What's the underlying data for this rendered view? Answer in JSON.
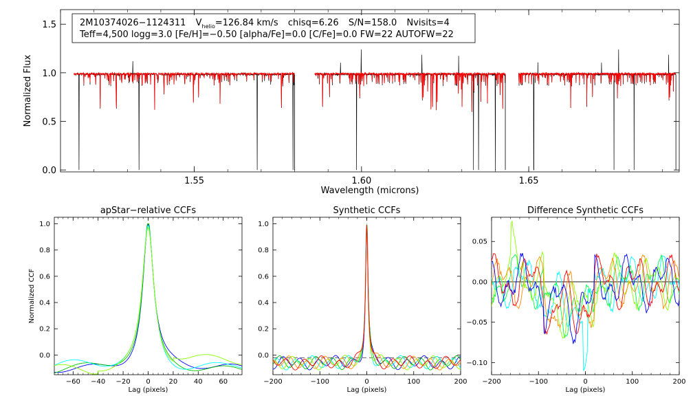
{
  "header": {
    "object_id": "2M10374026−1124311",
    "v_prefix": "V",
    "v_sub": "helio",
    "v_value": "=126.84 km/s",
    "chisq": "chisq=6.26",
    "snr": "S/N=158.0",
    "nvisits": "Nvisits=4",
    "params": "Teff=4,500 logg=3.0 [Fe/H]=−0.50 [alpha/Fe]=0.0 [C/Fe]=0.0 FW=22 AUTOFW=22"
  },
  "colors": {
    "observed": "#000000",
    "model": "#ff0000",
    "axes": "#000000",
    "series": [
      "#0000ff",
      "#00c000",
      "#00ffff",
      "#8cff00",
      "#ff8c00",
      "#ff0000"
    ],
    "reference_line": "#000000"
  },
  "chart_data": [
    {
      "type": "line",
      "title": "",
      "xlabel": "Wavelength (microns)",
      "ylabel": "Normalized Flux",
      "xlim": [
        1.51,
        1.695
      ],
      "ylim": [
        -0.02,
        1.65
      ],
      "xticks": [
        1.55,
        1.6,
        1.65
      ],
      "yticks": [
        0.0,
        0.5,
        1.0,
        1.5
      ],
      "ytick_labels": [
        "0.0",
        "0.5",
        "1.0",
        "1.5"
      ],
      "xtick_labels": [
        "1.55",
        "1.60",
        "1.65"
      ],
      "segments": [
        [
          1.514,
          1.58
        ],
        [
          1.586,
          1.643
        ],
        [
          1.647,
          1.694
        ]
      ],
      "deep_lines": [
        1.5155,
        1.5335,
        1.5688,
        1.5795,
        1.5985,
        1.6335,
        1.635,
        1.64,
        1.6515,
        1.6755,
        1.6815
      ],
      "series": [
        {
          "name": "",
          "color": "#000000"
        },
        {
          "name": "",
          "color": "#ff0000"
        }
      ]
    },
    {
      "type": "line",
      "title": "apStar−relative CCFs",
      "xlabel": "Lag (pixels)",
      "ylabel": "Normalized CCF",
      "xlim": [
        -75,
        75
      ],
      "ylim": [
        -0.15,
        1.05
      ],
      "xticks": [
        -60,
        -40,
        -20,
        0,
        20,
        40,
        60
      ],
      "xtick_labels": [
        "−60",
        "−40",
        "−20",
        "0",
        "20",
        "40",
        "60"
      ],
      "yticks": [
        0.0,
        0.2,
        0.4,
        0.6,
        0.8,
        1.0
      ],
      "ytick_labels": [
        "0.0",
        "0.2",
        "0.4",
        "0.6",
        "0.8",
        "1.0"
      ],
      "series": [
        {
          "name": "",
          "color": "#0000ff"
        },
        {
          "name": "",
          "color": "#00c000"
        },
        {
          "name": "",
          "color": "#00ffff"
        },
        {
          "name": "",
          "color": "#8cff00"
        }
      ]
    },
    {
      "type": "line",
      "title": "Synthetic CCFs",
      "xlabel": "Lag (pixels)",
      "ylabel": "",
      "xlim": [
        -200,
        200
      ],
      "ylim": [
        -0.15,
        1.05
      ],
      "xticks": [
        -200,
        -100,
        0,
        100,
        200
      ],
      "xtick_labels": [
        "−200",
        "−100",
        "0",
        "100",
        "200"
      ],
      "yticks": [
        0.0,
        0.2,
        0.4,
        0.6,
        0.8,
        1.0
      ],
      "ytick_labels": [
        "0.0",
        "0.2",
        "0.4",
        "0.6",
        "0.8",
        "1.0"
      ],
      "series": [
        {
          "name": "",
          "color": "#0000ff"
        },
        {
          "name": "",
          "color": "#00c000"
        },
        {
          "name": "",
          "color": "#00ffff"
        },
        {
          "name": "",
          "color": "#8cff00"
        },
        {
          "name": "",
          "color": "#ff8c00"
        },
        {
          "name": "",
          "color": "#ff0000"
        }
      ]
    },
    {
      "type": "line",
      "title": "Difference Synthetic CCFs",
      "xlabel": "Lag (pixels)",
      "ylabel": "",
      "xlim": [
        -200,
        200
      ],
      "ylim": [
        -0.115,
        0.08
      ],
      "xticks": [
        -200,
        -100,
        0,
        100,
        200
      ],
      "xtick_labels": [
        "−200",
        "−100",
        "0",
        "100",
        "200"
      ],
      "yticks": [
        -0.1,
        -0.05,
        0.0,
        0.05
      ],
      "ytick_labels": [
        "−0.10",
        "−0.05",
        "0.00",
        "0.05"
      ],
      "series": [
        {
          "name": "",
          "color": "#00ffff"
        },
        {
          "name": "",
          "color": "#00ff40"
        },
        {
          "name": "",
          "color": "#8cff00"
        },
        {
          "name": "",
          "color": "#ff8c00"
        },
        {
          "name": "",
          "color": "#ff0000"
        },
        {
          "name": "",
          "color": "#0000ff"
        }
      ]
    }
  ]
}
